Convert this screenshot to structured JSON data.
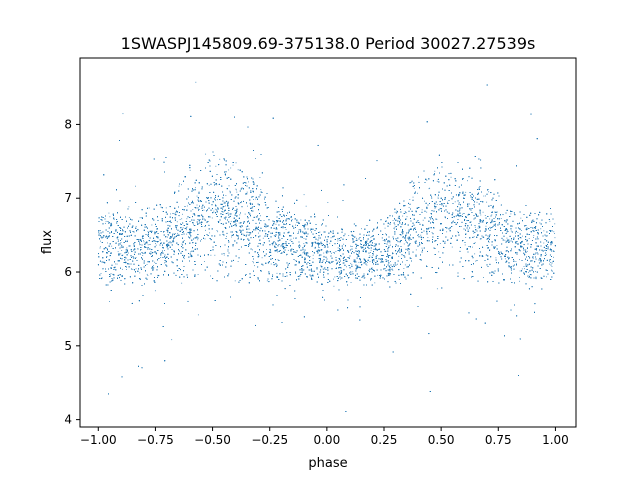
{
  "chart_data": {
    "type": "scatter",
    "title": "1SWASPJ145809.69-375138.0 Period 30027.27539s",
    "xlabel": "phase",
    "ylabel": "flux",
    "xlim": [
      -1.08,
      1.09
    ],
    "ylim": [
      3.9,
      8.9
    ],
    "xticks": [
      -1.0,
      -0.75,
      -0.5,
      -0.25,
      0.0,
      0.25,
      0.5,
      0.75,
      1.0
    ],
    "xtick_labels": [
      "−1.00",
      "−0.75",
      "−0.50",
      "−0.25",
      "0.00",
      "0.25",
      "0.50",
      "0.75",
      "1.00"
    ],
    "yticks": [
      4,
      5,
      6,
      7,
      8
    ],
    "ytick_labels": [
      "4",
      "5",
      "6",
      "7",
      "8"
    ],
    "grid": false,
    "marker_color": "#1f77b4",
    "approx_point_count": 24000,
    "x_range": [
      -1.0,
      1.0
    ],
    "flux_envelope": {
      "phase": [
        -1.0,
        -0.9,
        -0.8,
        -0.7,
        -0.6,
        -0.5,
        -0.4,
        -0.3,
        -0.2,
        -0.1,
        0.0,
        0.1,
        0.2,
        0.3,
        0.4,
        0.5,
        0.6,
        0.7,
        0.8,
        0.9,
        1.0
      ],
      "dense_low": [
        5.9,
        5.9,
        5.9,
        5.95,
        5.9,
        5.85,
        5.85,
        5.85,
        5.85,
        5.9,
        5.9,
        5.9,
        5.9,
        5.95,
        5.9,
        5.85,
        5.85,
        5.85,
        5.85,
        5.9,
        5.9
      ],
      "dense_high": [
        6.8,
        6.8,
        6.85,
        7.0,
        7.4,
        7.6,
        7.5,
        7.2,
        6.9,
        6.7,
        6.6,
        6.55,
        6.6,
        6.85,
        7.4,
        7.6,
        7.5,
        7.15,
        6.85,
        6.8,
        6.8
      ],
      "median": [
        6.3,
        6.3,
        6.3,
        6.35,
        6.6,
        6.8,
        6.75,
        6.55,
        6.4,
        6.3,
        6.25,
        6.2,
        6.25,
        6.35,
        6.6,
        6.8,
        6.75,
        6.55,
        6.4,
        6.3,
        6.3
      ]
    },
    "outlier_range": [
      4.1,
      8.6
    ]
  }
}
